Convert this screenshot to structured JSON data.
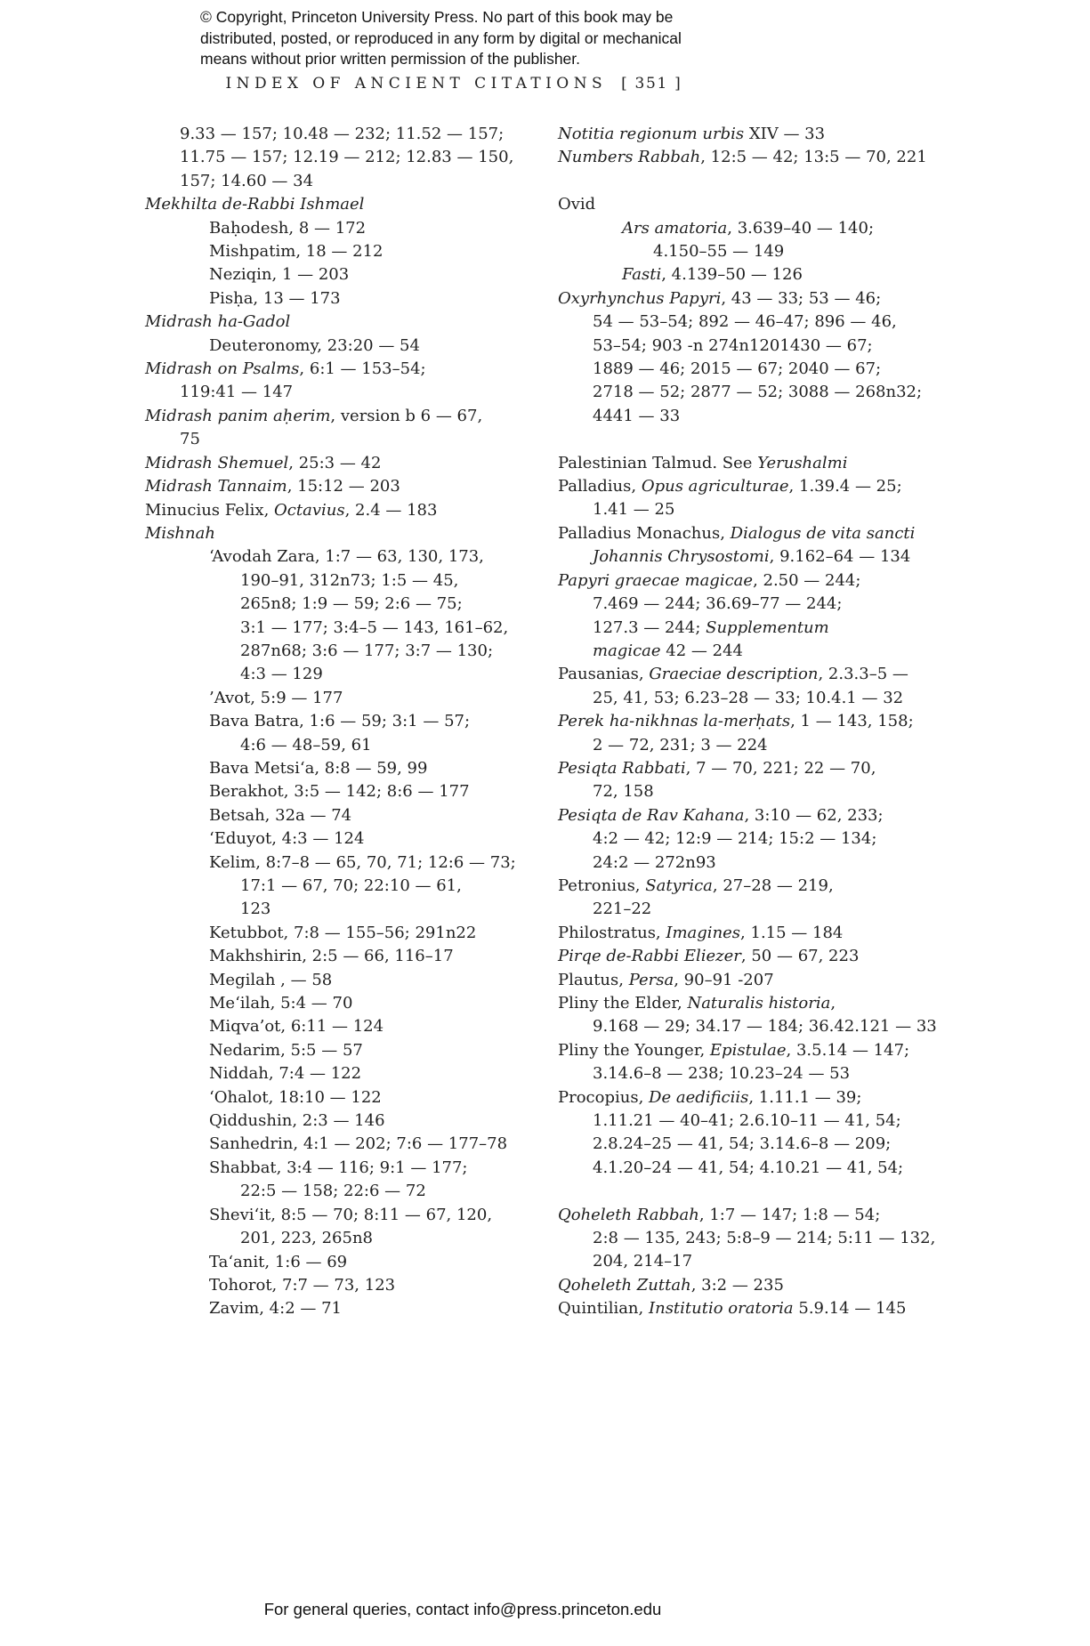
{
  "page": {
    "copyright_lines": [
      "© Copyright, Princeton University Press. No part of this book may be",
      "distributed, posted, or reproduced in any form by digital or mechanical",
      "means without prior written permission of the publisher."
    ],
    "header": {
      "title": "INDEX OF ANCIENT CITATIONS",
      "page_number": "[ 351 ]"
    },
    "footer": "For general queries, contact info@press.princeton.edu"
  },
  "index": {
    "columns": [
      {
        "side": "left",
        "lines": [
          {
            "indent": 1,
            "text": "9.33 — 157; 10.48 — 232; 11.52 — 157;"
          },
          {
            "indent": 1,
            "text": "11.75 — 157; 12.19 — 212; 12.83 — 150,"
          },
          {
            "indent": 1,
            "text": "157; 14.60 — 34"
          },
          {
            "indent": 0,
            "text": "*Mekhilta de-Rabbi Ishmael*"
          },
          {
            "indent": 2,
            "text": "Baḥodesh, 8 — 172"
          },
          {
            "indent": 2,
            "text": "Mishpatim, 18 — 212"
          },
          {
            "indent": 2,
            "text": "Neziqin, 1 — 203"
          },
          {
            "indent": 2,
            "text": "Pisḥa, 13 — 173"
          },
          {
            "indent": 0,
            "text": "*Midrash ha-Gadol*"
          },
          {
            "indent": 2,
            "text": "Deuteronomy, 23:20 — 54"
          },
          {
            "indent": 0,
            "text": "*Midrash on Psalms*, 6:1 — 153–54;"
          },
          {
            "indent": 1,
            "text": "119:41 — 147"
          },
          {
            "indent": 0,
            "text": "*Midrash panim aḥerim*, version b 6 — 67,"
          },
          {
            "indent": 1,
            "text": "75"
          },
          {
            "indent": 0,
            "text": "*Midrash Shemuel*, 25:3 — 42"
          },
          {
            "indent": 0,
            "text": "*Midrash Tannaim*, 15:12 — 203"
          },
          {
            "indent": 0,
            "text": "Minucius Felix, *Octavius*, 2.4 — 183"
          },
          {
            "indent": 0,
            "text": "*Mishnah*"
          },
          {
            "indent": 2,
            "text": "‘Avodah Zara, 1:7 — 63, 130, 173,"
          },
          {
            "indent": 3,
            "text": "190–91, 312n73; 1:5 — 45,"
          },
          {
            "indent": 3,
            "text": "265n8; 1:9 — 59; 2:6 — 75;"
          },
          {
            "indent": 3,
            "text": "3:1 — 177; 3:4–5 — 143, 161–62,"
          },
          {
            "indent": 3,
            "text": "287n68; 3:6 — 177; 3:7 — 130;"
          },
          {
            "indent": 3,
            "text": "4:3 — 129"
          },
          {
            "indent": 2,
            "text": "’Avot, 5:9 — 177"
          },
          {
            "indent": 2,
            "text": "Bava Batra, 1:6 — 59; 3:1 — 57;"
          },
          {
            "indent": 3,
            "text": "4:6 — 48–59, 61"
          },
          {
            "indent": 2,
            "text": "Bava Metsi‘a, 8:8 — 59, 99"
          },
          {
            "indent": 2,
            "text": "Berakhot, 3:5 — 142; 8:6 — 177"
          },
          {
            "indent": 2,
            "text": "Betsah, 32a — 74"
          },
          {
            "indent": 2,
            "text": "‘Eduyot, 4:3 — 124"
          },
          {
            "indent": 2,
            "text": "Kelim, 8:7–8 — 65, 70, 71; 12:6 — 73;"
          },
          {
            "indent": 3,
            "text": "17:1 — 67, 70; 22:10 — 61,"
          },
          {
            "indent": 3,
            "text": "123"
          },
          {
            "indent": 2,
            "text": "Ketubbot, 7:8 — 155–56; 291n22"
          },
          {
            "indent": 2,
            "text": "Makhshirin, 2:5 — 66, 116–17"
          },
          {
            "indent": 2,
            "text": "Megilah , — 58"
          },
          {
            "indent": 2,
            "text": "Me‘ilah, 5:4 — 70"
          },
          {
            "indent": 2,
            "text": "Miqva’ot, 6:11 — 124"
          },
          {
            "indent": 2,
            "text": "Nedarim, 5:5 — 57"
          },
          {
            "indent": 2,
            "text": "Niddah, 7:4 — 122"
          },
          {
            "indent": 2,
            "text": "‘Ohalot, 18:10 — 122"
          },
          {
            "indent": 2,
            "text": "Qiddushin, 2:3 — 146"
          },
          {
            "indent": 2,
            "text": "Sanhedrin, 4:1 — 202; 7:6 — 177–78"
          },
          {
            "indent": 2,
            "text": "Shabbat, 3:4 — 116; 9:1 — 177;"
          },
          {
            "indent": 3,
            "text": "22:5 — 158; 22:6 — 72"
          },
          {
            "indent": 2,
            "text": "Shevi‘it, 8:5 — 70; 8:11 — 67, 120,"
          },
          {
            "indent": 3,
            "text": "201, 223, 265n8"
          },
          {
            "indent": 2,
            "text": "Ta‘anit, 1:6 — 69"
          },
          {
            "indent": 2,
            "text": "Tohorot, 7:7 — 73, 123"
          },
          {
            "indent": 2,
            "text": "Zavim, 4:2 — 71"
          }
        ]
      },
      {
        "side": "right",
        "lines": [
          {
            "indent": 0,
            "text": "*Notitia regionum urbis* XIV — 33"
          },
          {
            "indent": 0,
            "text": "*Numbers Rabbah*, 12:5 — 42; 13:5 — 70, 221"
          },
          {
            "indent": 0,
            "text": ""
          },
          {
            "indent": 0,
            "text": "Ovid"
          },
          {
            "indent": 2,
            "text": "*Ars amatoria*, 3.639–40 — 140;"
          },
          {
            "indent": 3,
            "text": "4.150–55 — 149"
          },
          {
            "indent": 2,
            "text": "*Fasti*, 4.139–50 — 126"
          },
          {
            "indent": 0,
            "text": "*Oxyrhynchus Papyri*, 43 — 33; 53 — 46;"
          },
          {
            "indent": 1,
            "text": "54 — 53–54; 892 — 46–47; 896 — 46,"
          },
          {
            "indent": 1,
            "text": "53–54; 903 -n 274n1201430 — 67;"
          },
          {
            "indent": 1,
            "text": "1889 — 46; 2015 — 67; 2040 — 67;"
          },
          {
            "indent": 1,
            "text": "2718 — 52; 2877 — 52; 3088 — 268n32;"
          },
          {
            "indent": 1,
            "text": "4441 — 33"
          },
          {
            "indent": 0,
            "text": ""
          },
          {
            "indent": 0,
            "text": "Palestinian Talmud. See *Yerushalmi*"
          },
          {
            "indent": 0,
            "text": "Palladius, *Opus agriculturae*, 1.39.4 — 25;"
          },
          {
            "indent": 1,
            "text": "1.41 — 25"
          },
          {
            "indent": 0,
            "text": "Palladius Monachus, *Dialogus de vita sancti*"
          },
          {
            "indent": 1,
            "text": "*Johannis Chrysostomi*, 9.162–64 — 134"
          },
          {
            "indent": 0,
            "text": "*Papyri graecae magicae*, 2.50 — 244;"
          },
          {
            "indent": 1,
            "text": "7.469 — 244; 36.69–77 — 244;"
          },
          {
            "indent": 1,
            "text": "127.3 — 244; *Supplementum*"
          },
          {
            "indent": 1,
            "text": "*magicae* 42 — 244"
          },
          {
            "indent": 0,
            "text": "Pausanias, *Graeciae description*, 2.3.3–5 —"
          },
          {
            "indent": 1,
            "text": "25, 41, 53; 6.23–28 — 33; 10.4.1 — 32"
          },
          {
            "indent": 0,
            "text": "*Perek ha-nikhnas la-merḥats*, 1 — 143, 158;"
          },
          {
            "indent": 1,
            "text": "2 — 72, 231; 3 — 224"
          },
          {
            "indent": 0,
            "text": "*Pesiqta Rabbati*, 7 — 70, 221; 22 — 70,"
          },
          {
            "indent": 1,
            "text": "72, 158"
          },
          {
            "indent": 0,
            "text": "*Pesiqta de Rav Kahana*, 3:10 — 62, 233;"
          },
          {
            "indent": 1,
            "text": "4:2 — 42; 12:9 — 214; 15:2 — 134;"
          },
          {
            "indent": 1,
            "text": "24:2 — 272n93"
          },
          {
            "indent": 0,
            "text": "Petronius, *Satyrica*, 27–28 — 219,"
          },
          {
            "indent": 1,
            "text": "221–22"
          },
          {
            "indent": 0,
            "text": "Philostratus, *Imagines*, 1.15 — 184"
          },
          {
            "indent": 0,
            "text": "*Pirqe de-Rabbi Eliezer*, 50 — 67, 223"
          },
          {
            "indent": 0,
            "text": "Plautus, *Persa*, 90–91 -207"
          },
          {
            "indent": 0,
            "text": "Pliny the Elder, *Naturalis historia*,"
          },
          {
            "indent": 1,
            "text": "9.168 — 29; 34.17 — 184; 36.42.121 — 33"
          },
          {
            "indent": 0,
            "text": "Pliny the Younger, *Epistulae*, 3.5.14 — 147;"
          },
          {
            "indent": 1,
            "text": "3.14.6–8 — 238; 10.23–24 — 53"
          },
          {
            "indent": 0,
            "text": "Procopius, *De aedificiis*, 1.11.1 — 39;"
          },
          {
            "indent": 1,
            "text": "1.11.21 — 40–41; 2.6.10–11 — 41, 54;"
          },
          {
            "indent": 1,
            "text": "2.8.24–25 — 41, 54; 3.14.6–8 — 209;"
          },
          {
            "indent": 1,
            "text": "4.1.20–24 — 41, 54; 4.10.21 — 41, 54;"
          },
          {
            "indent": 0,
            "text": ""
          },
          {
            "indent": 0,
            "text": "*Qoheleth Rabbah*, 1:7 — 147; 1:8 — 54;"
          },
          {
            "indent": 1,
            "text": "2:8 — 135, 243; 5:8–9 — 214; 5:11 — 132,"
          },
          {
            "indent": 1,
            "text": "204, 214–17"
          },
          {
            "indent": 0,
            "text": "*Qoheleth Zuttah*, 3:2 — 235"
          },
          {
            "indent": 0,
            "text": "Quintilian, *Institutio oratoria* 5.9.14 — 145"
          }
        ]
      }
    ]
  }
}
